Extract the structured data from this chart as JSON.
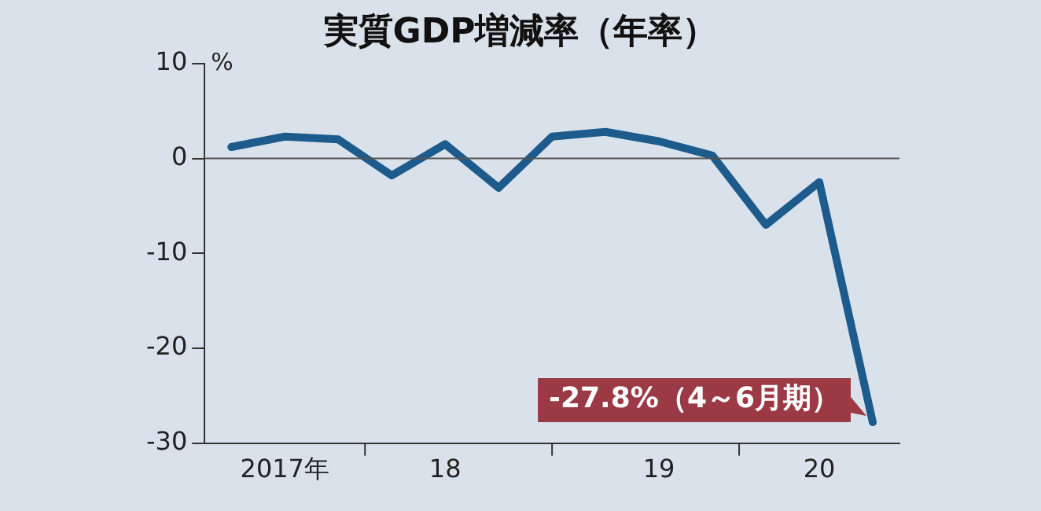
{
  "chart_data": {
    "type": "line",
    "title": "実質GDP増減率（年率）",
    "ylabel": "%",
    "categories": [
      null,
      "2017年",
      null,
      null,
      "18",
      null,
      null,
      null,
      "19",
      null,
      null,
      "20",
      null
    ],
    "series": [
      {
        "color": "#1d5b8c",
        "values": [
          1.2,
          2.3,
          2.0,
          -1.8,
          1.5,
          -3.1,
          2.3,
          2.8,
          1.8,
          0.3,
          -7.0,
          -2.5,
          -27.8
        ]
      }
    ],
    "ylim": [
      -30,
      10
    ],
    "yticks": [
      -30,
      -20,
      -10,
      0,
      10
    ],
    "grid": false,
    "legend": false,
    "marker": "none",
    "line_style": "solid",
    "ref_lines": [
      {
        "axis": "y",
        "value": 0,
        "color": "#555555"
      }
    ],
    "annotations": [
      "-27.8%（4～6月期）"
    ]
  }
}
